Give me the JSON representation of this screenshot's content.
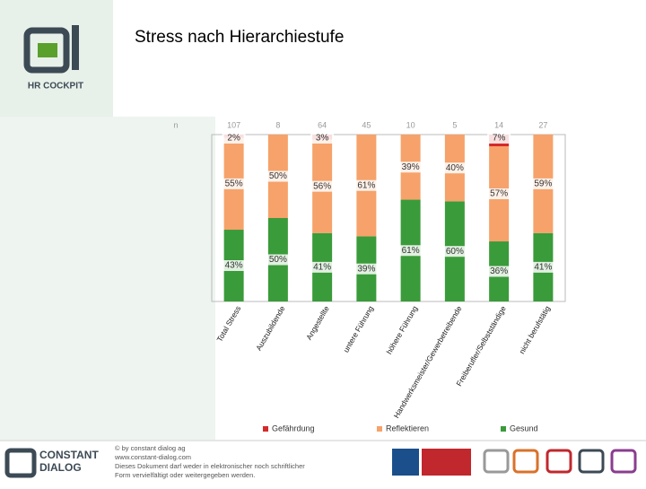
{
  "header": {
    "logo_text": "HR COCKPIT",
    "title": "Stress nach Hierarchiestufe"
  },
  "chart_data": {
    "type": "stacked_bar_100",
    "n_label": "n",
    "counts": [
      107,
      8,
      64,
      45,
      10,
      5,
      14,
      27
    ],
    "categories": [
      "Total Stress",
      "Auszubildende",
      "Angestellte",
      "untere Führung",
      "höhere Führung",
      "Handwerksmeister/Gewerbetreibende",
      "Freiberufler/Selbstständige",
      "nicht berufstätig"
    ],
    "ylim": [
      0,
      100
    ],
    "series": [
      {
        "name": "Gefährdung",
        "color": "#d42a2a",
        "values": [
          2,
          0,
          3,
          0,
          0,
          0,
          7,
          0
        ],
        "value_labels": [
          "2%",
          null,
          "3%",
          null,
          null,
          null,
          "7%",
          null
        ]
      },
      {
        "name": "Reflektieren",
        "color": "#f6a26a",
        "values": [
          55,
          50,
          56,
          61,
          39,
          40,
          57,
          59
        ],
        "value_labels": [
          "55%",
          "50%",
          "56%",
          "61%",
          "39%",
          "40%",
          "57%",
          "59%"
        ]
      },
      {
        "name": "Gesund",
        "color": "#3a9b3a",
        "values": [
          43,
          50,
          41,
          39,
          61,
          60,
          36,
          41
        ],
        "value_labels": [
          "43%",
          "50%",
          "41%",
          "39%",
          "61%",
          "60%",
          "36%",
          "41%"
        ]
      }
    ]
  },
  "footer": {
    "brand": [
      "CONSTANT",
      "DIALOG"
    ],
    "lines": [
      "© by constant dialog ag",
      "www.constant-dialog.com",
      "Dieses Dokument darf weder in elektronischer noch schriftlicher",
      "Form vervielfältigt oder weitergegeben werden."
    ]
  }
}
